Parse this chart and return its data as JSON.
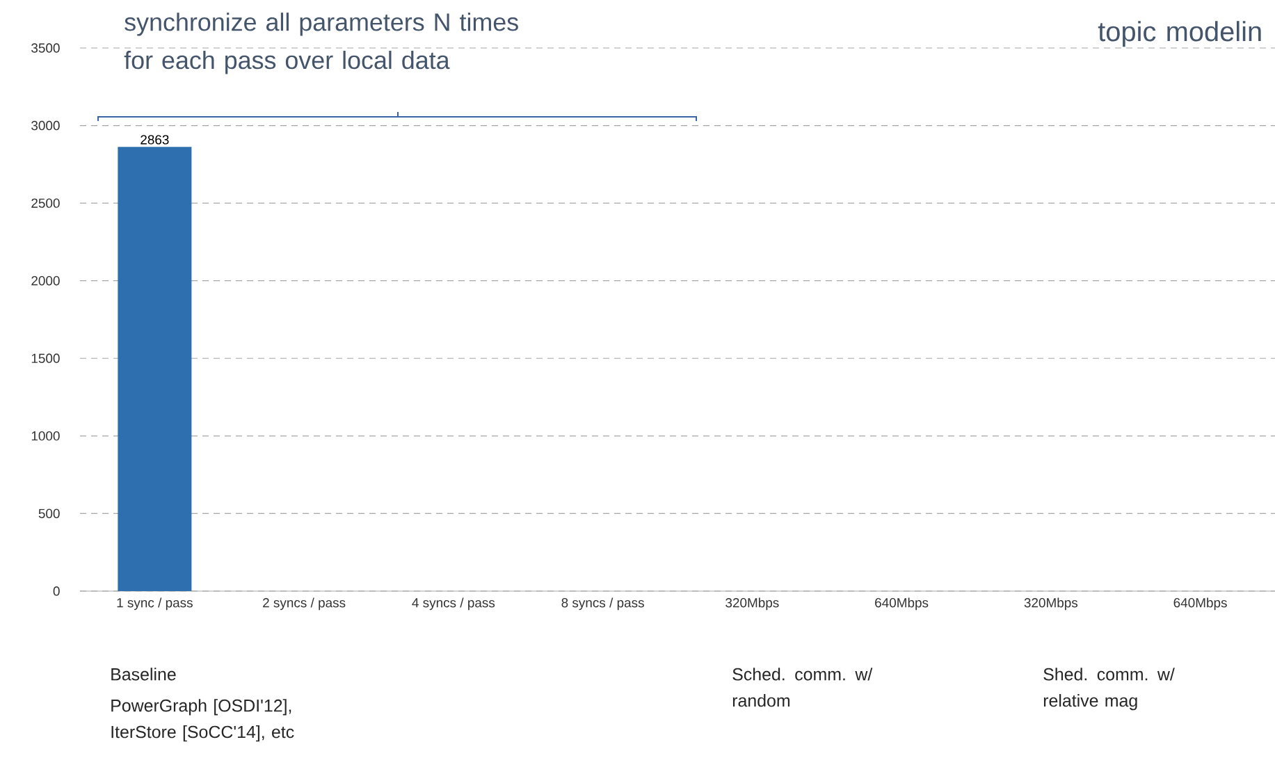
{
  "chart_data": {
    "type": "bar",
    "categories": [
      "1 sync / pass",
      "2 syncs / pass",
      "4 syncs / pass",
      "8 syncs / pass",
      "320Mbps",
      "640Mbps",
      "320Mbps",
      "640Mbps"
    ],
    "values": [
      2863,
      null,
      null,
      null,
      null,
      null,
      null,
      null
    ],
    "color": "#2e6fb0",
    "data_labels": true,
    "ylim": [
      0,
      3500
    ],
    "yticks": [
      0,
      500,
      1000,
      1500,
      2000,
      2500,
      3000,
      3500
    ],
    "grid": "y",
    "annotations": [
      "synchronize all parameters N times for each pass over local data",
      "topic modelin",
      "Baseline",
      "PowerGraph [OSDI'12], IterStore [SoCC'14], etc",
      "Sched. comm. w/ random",
      "Shed. comm. w/ relative mag"
    ]
  }
}
